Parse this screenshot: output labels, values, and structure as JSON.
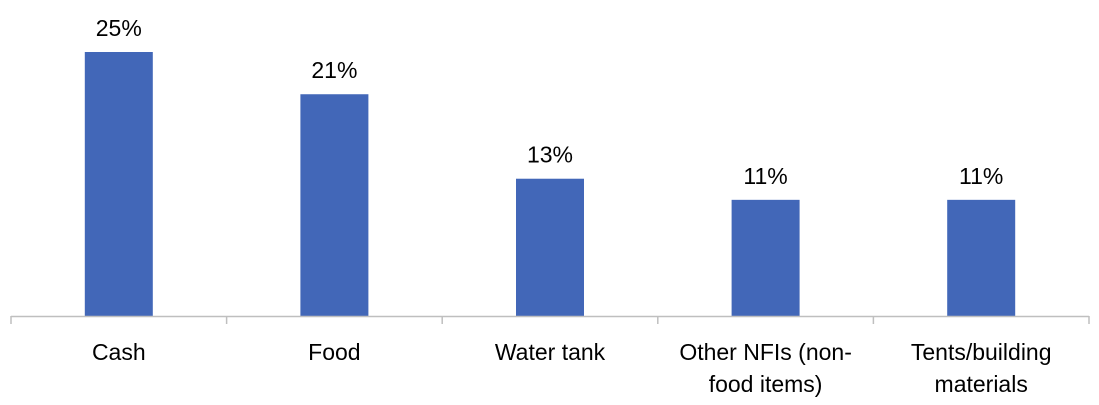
{
  "chart_data": {
    "type": "bar",
    "categories": [
      [
        "Cash"
      ],
      [
        "Food"
      ],
      [
        "Water tank"
      ],
      [
        "Other NFIs (non-",
        "food items)"
      ],
      [
        "Tents/building",
        "materials"
      ]
    ],
    "values": [
      25,
      21,
      13,
      11,
      11
    ],
    "data_labels": [
      "25%",
      "21%",
      "13%",
      "11%",
      "11%"
    ],
    "value_unit": "%",
    "ylim": [
      0,
      25
    ],
    "title": "",
    "xlabel": "",
    "ylabel": "",
    "grid": false,
    "legend": "none",
    "colors": {
      "bar": "#4267B8",
      "axis": "#BFBFBF",
      "text": "#000000"
    }
  }
}
